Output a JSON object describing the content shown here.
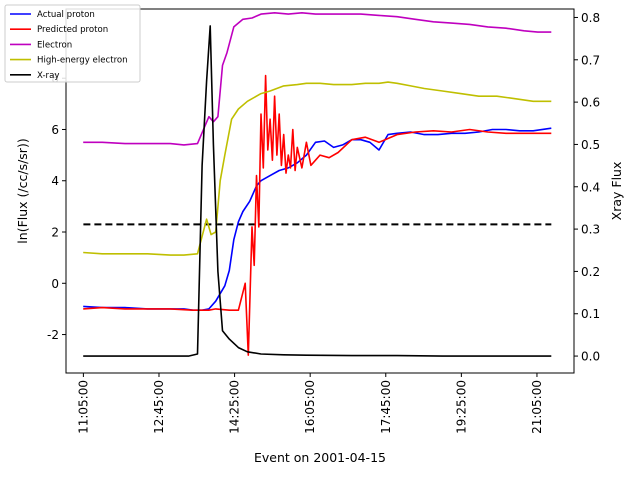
{
  "chart_data": {
    "type": "line",
    "xlabel": "Event on 2001-04-15",
    "ylabel_left": "ln(Flux (/cc/s/sr))",
    "ylabel_right": "Xray Flux",
    "x_ticks": [
      "11:05:00",
      "12:45:00",
      "14:25:00",
      "16:05:00",
      "17:45:00",
      "19:25:00",
      "21:05:00"
    ],
    "x_tick_hours": [
      11.0833,
      12.75,
      14.4167,
      16.0833,
      17.75,
      19.4167,
      21.0833
    ],
    "xlim_hours": [
      10.7,
      21.9
    ],
    "ylim_left": [
      -3.5,
      10.7
    ],
    "y_ticks_left": [
      -2,
      0,
      2,
      4,
      6,
      8
    ],
    "ylim_right": [
      -0.04,
      0.82
    ],
    "y_ticks_right": [
      "0.0",
      "0.1",
      "0.2",
      "0.3",
      "0.4",
      "0.5",
      "0.6",
      "0.7",
      "0.8"
    ],
    "y_tick_values_right": [
      0.0,
      0.1,
      0.2,
      0.3,
      0.4,
      0.5,
      0.6,
      0.7,
      0.8
    ],
    "threshold": {
      "y": 2.3,
      "style": "dashed",
      "color": "#000000"
    },
    "legend": {
      "placement": "top-left",
      "entries": [
        "Actual proton",
        "Predicted proton",
        "Electron",
        "High-energy electron",
        "X-ray"
      ]
    },
    "series": [
      {
        "name": "Actual proton",
        "color": "#0000ff",
        "axis": "left",
        "x": [
          11.08,
          11.5,
          12.0,
          12.5,
          13.0,
          13.3,
          13.5,
          13.7,
          13.85,
          14.0,
          14.2,
          14.3,
          14.4,
          14.5,
          14.6,
          14.75,
          14.9,
          15.0,
          15.2,
          15.4,
          15.6,
          15.8,
          16.0,
          16.2,
          16.4,
          16.6,
          16.8,
          17.0,
          17.2,
          17.4,
          17.6,
          17.8,
          18.0,
          18.3,
          18.6,
          18.9,
          19.2,
          19.5,
          19.8,
          20.1,
          20.4,
          20.7,
          21.0,
          21.4
        ],
        "y": [
          -0.9,
          -0.95,
          -0.95,
          -1.0,
          -1.0,
          -1.0,
          -1.05,
          -1.05,
          -1.0,
          -0.7,
          -0.1,
          0.5,
          1.7,
          2.4,
          2.8,
          3.2,
          3.8,
          4.0,
          4.2,
          4.4,
          4.5,
          4.7,
          5.0,
          5.5,
          5.55,
          5.3,
          5.4,
          5.6,
          5.6,
          5.5,
          5.2,
          5.8,
          5.85,
          5.9,
          5.8,
          5.8,
          5.85,
          5.85,
          5.9,
          6.0,
          6.0,
          5.95,
          5.95,
          6.05
        ]
      },
      {
        "name": "Predicted proton",
        "color": "#ff0000",
        "axis": "left",
        "x": [
          11.08,
          11.5,
          12.0,
          12.5,
          13.0,
          13.5,
          13.85,
          14.0,
          14.3,
          14.5,
          14.65,
          14.72,
          14.8,
          14.85,
          14.9,
          14.95,
          15.0,
          15.05,
          15.1,
          15.15,
          15.2,
          15.25,
          15.3,
          15.35,
          15.4,
          15.45,
          15.5,
          15.55,
          15.6,
          15.65,
          15.7,
          15.75,
          15.8,
          15.9,
          16.0,
          16.1,
          16.2,
          16.3,
          16.5,
          16.7,
          17.0,
          17.3,
          17.6,
          18.0,
          18.4,
          18.8,
          19.2,
          19.6,
          20.0,
          20.4,
          20.8,
          21.1,
          21.4
        ],
        "y": [
          -1.0,
          -0.95,
          -1.0,
          -1.0,
          -1.0,
          -1.05,
          -1.05,
          -1.0,
          -1.05,
          -1.05,
          0.0,
          -2.8,
          2.2,
          0.7,
          4.2,
          2.2,
          6.6,
          4.5,
          8.1,
          5.2,
          6.4,
          4.8,
          7.3,
          5.0,
          6.6,
          4.6,
          5.8,
          4.3,
          5.0,
          4.5,
          6.0,
          4.4,
          5.3,
          4.5,
          5.5,
          4.6,
          4.8,
          5.0,
          4.9,
          5.1,
          5.6,
          5.7,
          5.5,
          5.8,
          5.9,
          5.95,
          5.9,
          6.0,
          5.9,
          5.85,
          5.85,
          5.85,
          5.85
        ]
      },
      {
        "name": "Electron",
        "color": "#bf00bf",
        "axis": "left",
        "x": [
          11.08,
          11.5,
          12.0,
          12.5,
          13.0,
          13.3,
          13.6,
          13.85,
          13.95,
          14.05,
          14.15,
          14.25,
          14.4,
          14.6,
          14.8,
          15.0,
          15.3,
          15.6,
          15.9,
          16.2,
          16.5,
          16.8,
          17.2,
          17.6,
          18.0,
          18.4,
          18.8,
          19.2,
          19.6,
          20.0,
          20.4,
          20.8,
          21.1,
          21.4
        ],
        "y": [
          5.5,
          5.5,
          5.45,
          5.45,
          5.45,
          5.4,
          5.45,
          6.5,
          6.3,
          6.5,
          8.5,
          9.0,
          10.0,
          10.3,
          10.35,
          10.5,
          10.55,
          10.5,
          10.55,
          10.5,
          10.5,
          10.5,
          10.5,
          10.45,
          10.4,
          10.3,
          10.2,
          10.15,
          10.1,
          10.0,
          9.95,
          9.85,
          9.8,
          9.8
        ]
      },
      {
        "name": "High-energy electron",
        "color": "#bfbf00",
        "axis": "left",
        "x": [
          11.08,
          11.5,
          12.0,
          12.5,
          13.0,
          13.3,
          13.6,
          13.8,
          13.9,
          14.0,
          14.1,
          14.2,
          14.35,
          14.5,
          14.7,
          15.0,
          15.2,
          15.5,
          15.8,
          16.0,
          16.3,
          16.6,
          17.0,
          17.3,
          17.6,
          17.8,
          18.0,
          18.3,
          18.6,
          19.0,
          19.4,
          19.8,
          20.2,
          20.6,
          21.0,
          21.4
        ],
        "y": [
          1.2,
          1.15,
          1.15,
          1.15,
          1.1,
          1.1,
          1.15,
          2.5,
          1.9,
          2.0,
          4.0,
          5.0,
          6.4,
          6.8,
          7.1,
          7.4,
          7.5,
          7.7,
          7.75,
          7.8,
          7.8,
          7.75,
          7.75,
          7.8,
          7.8,
          7.85,
          7.8,
          7.7,
          7.6,
          7.5,
          7.4,
          7.3,
          7.3,
          7.2,
          7.1,
          7.1
        ]
      },
      {
        "name": "X-ray",
        "color": "#000000",
        "axis": "right",
        "x": [
          11.08,
          12.0,
          13.0,
          13.4,
          13.6,
          13.7,
          13.8,
          13.88,
          13.95,
          14.05,
          14.15,
          14.3,
          14.5,
          14.7,
          15.0,
          15.5,
          16.0,
          17.0,
          18.0,
          19.0,
          20.0,
          21.0,
          21.4
        ],
        "y": [
          0.0,
          0.0,
          0.0,
          0.0,
          0.005,
          0.45,
          0.65,
          0.78,
          0.5,
          0.2,
          0.06,
          0.04,
          0.02,
          0.01,
          0.005,
          0.003,
          0.002,
          0.001,
          0.001,
          0.0,
          0.0,
          0.0,
          0.0
        ]
      }
    ]
  }
}
